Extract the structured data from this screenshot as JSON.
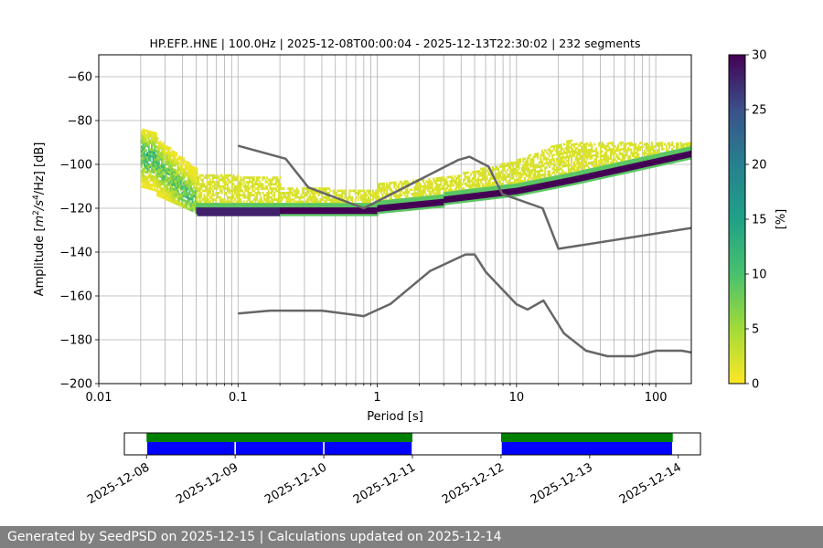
{
  "chart_data": [
    {
      "type": "heatmap",
      "title": "HP.EFP..HNE | 100.0Hz | 2025-12-08T00:00:04 - 2025-12-13T22:30:02 | 232 segments",
      "xlabel": "Period [s]",
      "ylabel_parts": {
        "main": "Amplitude [",
        "m": "m",
        "sup2": "2",
        "s": "/s",
        "sup4": "4",
        "hz": "/Hz] [dB]"
      },
      "xscale": "log",
      "xlim": [
        0.01,
        180
      ],
      "ylim": [
        -200,
        -50
      ],
      "xticks": [
        {
          "value": 0.01,
          "label": "0.01"
        },
        {
          "value": 0.1,
          "label": "0.1"
        },
        {
          "value": 1,
          "label": "1"
        },
        {
          "value": 10,
          "label": "10"
        },
        {
          "value": 100,
          "label": "100"
        }
      ],
      "yticks": [
        {
          "value": -60,
          "label": "−60"
        },
        {
          "value": -80,
          "label": "−80"
        },
        {
          "value": -100,
          "label": "−100"
        },
        {
          "value": -120,
          "label": "−120"
        },
        {
          "value": -140,
          "label": "−140"
        },
        {
          "value": -160,
          "label": "−160"
        },
        {
          "value": -180,
          "label": "−180"
        },
        {
          "value": -200,
          "label": "−200"
        }
      ],
      "grid": true,
      "colorscale": "viridis_r",
      "colorbar": {
        "label": "[%]",
        "range": [
          0,
          30
        ],
        "ticks": [
          {
            "value": 0,
            "label": "0"
          },
          {
            "value": 5,
            "label": "5"
          },
          {
            "value": 10,
            "label": "10"
          },
          {
            "value": 15,
            "label": "15"
          },
          {
            "value": 20,
            "label": "20"
          },
          {
            "value": 25,
            "label": "25"
          },
          {
            "value": 30,
            "label": "30"
          }
        ]
      },
      "density_bands": [
        {
          "period": [
            0.02,
            0.026
          ],
          "center_db": [
            -96,
            -98
          ],
          "low_db": [
            -110,
            -112
          ],
          "high_db": [
            -84,
            -86
          ],
          "peak_pct": 12
        },
        {
          "period": [
            0.026,
            0.05
          ],
          "center_db": [
            -100,
            -118
          ],
          "low_db": [
            -114,
            -122
          ],
          "high_db": [
            -88,
            -102
          ],
          "peak_pct": 10
        },
        {
          "period": [
            0.05,
            0.2
          ],
          "center_db": [
            -121,
            -122
          ],
          "low_db": [
            -123,
            -123
          ],
          "high_db": [
            -104,
            -106
          ],
          "peak_pct": 28
        },
        {
          "period": [
            0.2,
            1
          ],
          "center_db": [
            -121,
            -121
          ],
          "low_db": [
            -123,
            -123
          ],
          "high_db": [
            -110,
            -112
          ],
          "peak_pct": 30
        },
        {
          "period": [
            1,
            3
          ],
          "center_db": [
            -120,
            -117
          ],
          "low_db": [
            -122,
            -119
          ],
          "high_db": [
            -108,
            -106
          ],
          "peak_pct": 30
        },
        {
          "period": [
            3,
            10
          ],
          "center_db": [
            -116,
            -112
          ],
          "low_db": [
            -118,
            -114
          ],
          "high_db": [
            -106,
            -98
          ],
          "peak_pct": 30
        },
        {
          "period": [
            10,
            25
          ],
          "center_db": [
            -112,
            -107
          ],
          "low_db": [
            -114,
            -109
          ],
          "high_db": [
            -98,
            -88
          ],
          "peak_pct": 30
        },
        {
          "period": [
            25,
            180
          ],
          "center_db": [
            -107,
            -95
          ],
          "low_db": [
            -109,
            -97
          ],
          "high_db": [
            -90,
            -90
          ],
          "peak_pct": 30
        }
      ],
      "series": [
        {
          "role": "upper_noise_model",
          "color": "#666666",
          "points": [
            [
              0.1,
              -91.5
            ],
            [
              0.22,
              -97.4
            ],
            [
              0.32,
              -110.5
            ],
            [
              0.8,
              -120
            ],
            [
              3.8,
              -98
            ],
            [
              4.6,
              -96.5
            ],
            [
              6.3,
              -101
            ],
            [
              7.9,
              -113.5
            ],
            [
              15.4,
              -120
            ],
            [
              20,
              -138.5
            ],
            [
              180,
              -129
            ]
          ]
        },
        {
          "role": "lower_noise_model",
          "color": "#666666",
          "points": [
            [
              0.1,
              -168
            ],
            [
              0.17,
              -166.7
            ],
            [
              0.4,
              -166.7
            ],
            [
              0.8,
              -169.2
            ],
            [
              1.24,
              -163.7
            ],
            [
              2.4,
              -148.6
            ],
            [
              4.3,
              -141.1
            ],
            [
              5,
              -141.1
            ],
            [
              6,
              -149
            ],
            [
              10,
              -163.8
            ],
            [
              12,
              -166.2
            ],
            [
              15.6,
              -162.1
            ],
            [
              21.9,
              -177.1
            ],
            [
              31.6,
              -185
            ],
            [
              45,
              -187.5
            ],
            [
              70,
              -187.5
            ],
            [
              101,
              -185
            ],
            [
              154,
              -185
            ],
            [
              180,
              -185.8
            ]
          ]
        }
      ]
    },
    {
      "type": "timeline",
      "xlim": [
        "2025-12-08",
        "2025-12-14"
      ],
      "xaxis_start": "2025-12-07T18:00:00",
      "xaxis_end": "2025-12-14T06:00:00",
      "tick_labels": [
        "2025-12-08",
        "2025-12-09",
        "2025-12-10",
        "2025-12-11",
        "2025-12-12",
        "2025-12-13",
        "2025-12-14"
      ],
      "tick_values": [
        "2025-12-08",
        "2025-12-09",
        "2025-12-10",
        "2025-12-11",
        "2025-12-12",
        "2025-12-13",
        "2025-12-14"
      ],
      "green_spans": [
        [
          "2025-12-08T00:00:04",
          "2025-12-11T00:00:00"
        ],
        [
          "2025-12-12T00:00:00",
          "2025-12-13T22:30:02"
        ]
      ],
      "blue_spans": [
        [
          "2025-12-08T00:00:04",
          "2025-12-09T00:00:00"
        ],
        [
          "2025-12-09T00:00:00",
          "2025-12-10T00:00:00"
        ],
        [
          "2025-12-10T00:00:00",
          "2025-12-11T00:00:00"
        ],
        [
          "2025-12-12T00:00:00",
          "2025-12-13T22:30:02"
        ]
      ],
      "green_color": "#008000",
      "blue_color": "#0000ff"
    }
  ],
  "footer": {
    "text": "Generated by SeedPSD on 2025-12-15 | Calculations updated on 2025-12-14"
  }
}
